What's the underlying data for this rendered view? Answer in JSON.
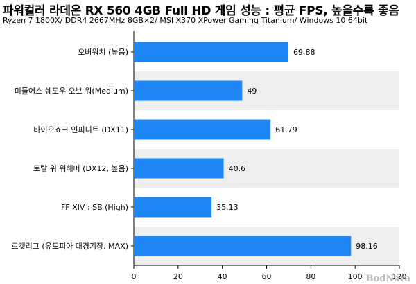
{
  "chart_data": {
    "type": "bar",
    "orientation": "horizontal",
    "title": "파워컬러 라데온 RX 560 4GB Full HD 게임 성능 : 평균 FPS, 높을수록 좋음",
    "subtitle": "Ryzen 7 1800X/ DDR4 2667MHz 8GB×2/ MSI X370 XPower Gaming Titanium/ Windows 10 64bit",
    "categories": [
      "오버워치 (높음)",
      "미들어스 쉐도우 오브 워(Medium)",
      "바이오쇼크 인피니트 (DX11)",
      "토탈 워 워해머 (DX12, 높음)",
      "FF XIV : SB (High)",
      "로켓리그 (유토피아 대경기장, MAX)"
    ],
    "values": [
      69.88,
      49,
      61.79,
      40.6,
      35.13,
      98.16
    ],
    "value_labels": [
      "69.88",
      "49",
      "61.79",
      "40.6",
      "35.13",
      "98.16"
    ],
    "xlim": [
      0,
      120
    ],
    "x_ticks": [
      0,
      20,
      40,
      60,
      80,
      100,
      120
    ],
    "xlabel": "",
    "ylabel": "",
    "grid": false,
    "legend": "none",
    "bar_color": "#1e87f5",
    "band_color": "#eeeeee"
  },
  "watermark": "BodNara"
}
